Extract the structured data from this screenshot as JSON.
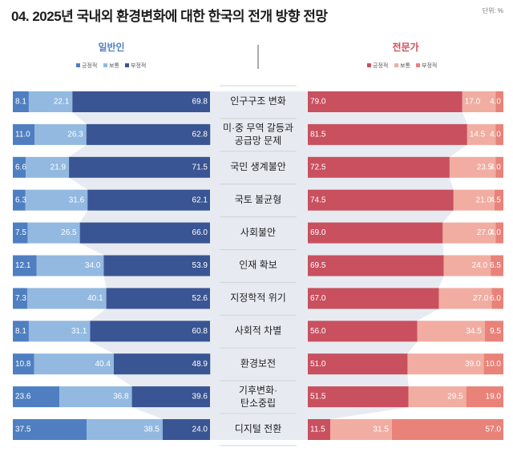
{
  "title": "04. 2025년 국내외 환경변화에 대한 한국의 전개 방향 전망",
  "unit": "단위: %",
  "colors": {
    "public": [
      "#4f7fc1",
      "#93b9e0",
      "#3a5593"
    ],
    "expert": [
      "#c9505f",
      "#f1ada2",
      "#e98279"
    ],
    "funnel": "#e7ebf1",
    "divider": "#555555"
  },
  "chart_data": {
    "type": "bar",
    "layout": "diverging-stacked-100",
    "categories": [
      "인구구조 변화",
      "미·중 무역 갈등과\n공급망 문제",
      "국민 생계불안",
      "국토 불균형",
      "사회불안",
      "인재 확보",
      "지정학적 위기",
      "사회적 차별",
      "환경보전",
      "기후변화·\n탄소중립",
      "디지털 전환"
    ],
    "groups": [
      {
        "name": "일반인",
        "legend": [
          "긍정적",
          "보통",
          "부정적"
        ],
        "series": [
          {
            "name": "긍정적",
            "values": [
              8.1,
              11.0,
              6.6,
              6.3,
              7.5,
              12.1,
              7.3,
              8.1,
              10.8,
              23.6,
              37.5
            ]
          },
          {
            "name": "보통",
            "values": [
              22.1,
              26.3,
              21.9,
              31.6,
              26.5,
              34.0,
              40.1,
              31.1,
              40.4,
              36.8,
              38.5
            ]
          },
          {
            "name": "부정적",
            "values": [
              69.8,
              62.8,
              71.5,
              62.1,
              66.0,
              53.9,
              52.6,
              60.8,
              48.9,
              39.6,
              24.0
            ]
          }
        ]
      },
      {
        "name": "전문가",
        "legend": [
          "긍정적",
          "보통",
          "부정적"
        ],
        "series": [
          {
            "name": "긍정적",
            "values": [
              79.0,
              81.5,
              72.5,
              74.5,
              69.0,
              69.5,
              67.0,
              56.0,
              51.0,
              51.5,
              11.5
            ]
          },
          {
            "name": "보통",
            "values": [
              17.0,
              14.5,
              23.5,
              21.0,
              27.0,
              24.0,
              27.0,
              34.5,
              39.0,
              29.5,
              31.5
            ]
          },
          {
            "name": "부정적",
            "values": [
              4.0,
              4.0,
              4.0,
              4.5,
              4.0,
              6.5,
              6.0,
              9.5,
              10.0,
              19.0,
              57.0
            ]
          }
        ]
      }
    ],
    "ylim": [
      0,
      100
    ]
  }
}
